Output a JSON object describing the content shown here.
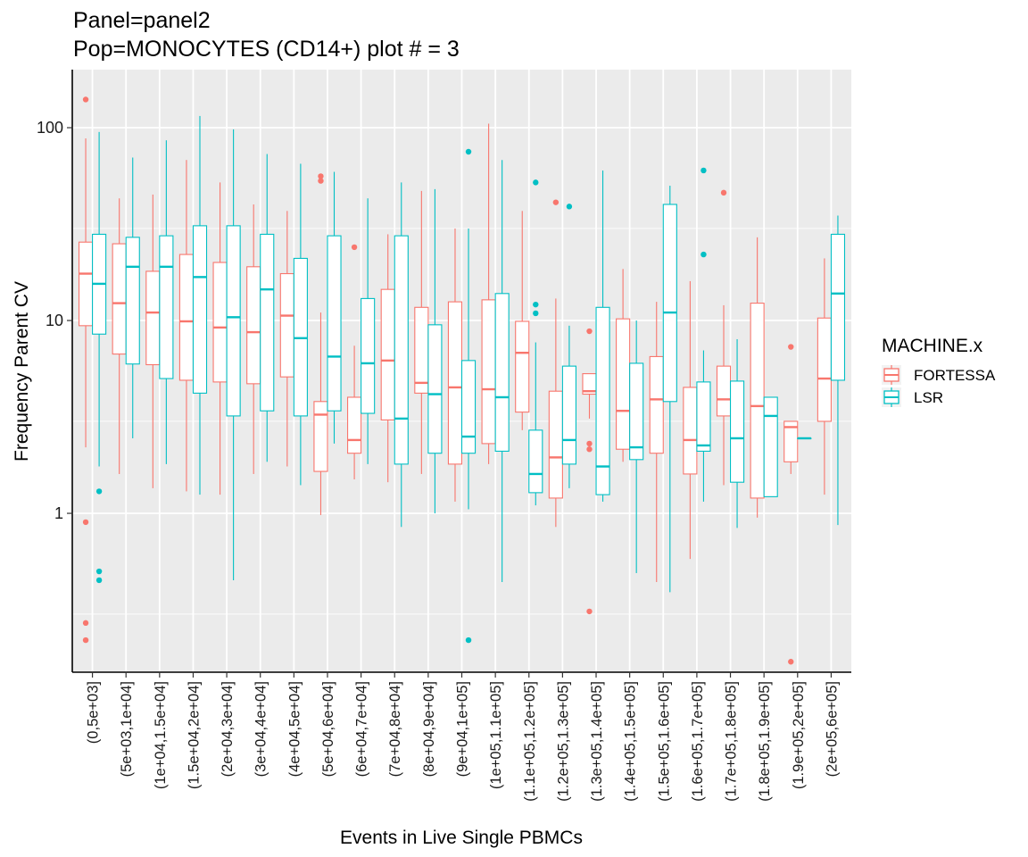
{
  "chart_data": {
    "type": "box",
    "title_lines": [
      "Panel=panel2",
      "Pop=MONOCYTES (CD14+) plot # = 3"
    ],
    "xlabel": "Events in Live Single PBMCs",
    "ylabel": "Frequency Parent CV",
    "y_scale": "log10",
    "ylim": [
      0.15,
      200
    ],
    "y_ticks": [
      1,
      10,
      100
    ],
    "y_tick_labels": [
      "1",
      "10",
      "100"
    ],
    "grid": true,
    "legend": {
      "title": "MACHINE.x",
      "placement": "right",
      "entries": [
        {
          "name": "FORTESSA",
          "color": "#F8766D"
        },
        {
          "name": "LSR",
          "color": "#00BFC4"
        }
      ]
    },
    "categories": [
      "(0,5e+03]",
      "(5e+03,1e+04]",
      "(1e+04,1.5e+04]",
      "(1.5e+04,2e+04]",
      "(2e+04,3e+04]",
      "(3e+04,4e+04]",
      "(4e+04,5e+04]",
      "(5e+04,6e+04]",
      "(6e+04,7e+04]",
      "(7e+04,8e+04]",
      "(8e+04,9e+04]",
      "(9e+04,1e+05]",
      "(1e+05,1.1e+05]",
      "(1.1e+05,1.2e+05]",
      "(1.2e+05,1.3e+05]",
      "(1.3e+05,1.4e+05]",
      "(1.4e+05,1.5e+05]",
      "(1.5e+05,1.6e+05]",
      "(1.6e+05,1.7e+05]",
      "(1.7e+05,1.8e+05]",
      "(1.8e+05,1.9e+05]",
      "(1.9e+05,2e+05]",
      "(2e+05,6e+05]"
    ],
    "series": [
      {
        "name": "FORTESSA",
        "color": "#F8766D",
        "boxes": [
          {
            "min": 2.2,
            "q1": 9.4,
            "median": 17.5,
            "q3": 25.5,
            "max": 88,
            "outliers": [
              140,
              0.9,
              0.27,
              0.22
            ]
          },
          {
            "min": 1.6,
            "q1": 6.7,
            "median": 12.3,
            "q3": 25,
            "max": 43,
            "outliers": []
          },
          {
            "min": 1.35,
            "q1": 5.9,
            "median": 11,
            "q3": 18,
            "max": 45,
            "outliers": []
          },
          {
            "min": 1.3,
            "q1": 4.9,
            "median": 9.9,
            "q3": 22,
            "max": 68,
            "outliers": []
          },
          {
            "min": 1.25,
            "q1": 4.8,
            "median": 9.2,
            "q3": 20,
            "max": 52,
            "outliers": []
          },
          {
            "min": 1.6,
            "q1": 4.7,
            "median": 8.7,
            "q3": 19,
            "max": 40,
            "outliers": []
          },
          {
            "min": 1.75,
            "q1": 5.1,
            "median": 10.6,
            "q3": 17.5,
            "max": 37,
            "outliers": []
          },
          {
            "min": 0.98,
            "q1": 1.65,
            "median": 3.25,
            "q3": 3.8,
            "max": 11,
            "outliers": [
              56,
              53
            ]
          },
          {
            "min": 1.5,
            "q1": 2.05,
            "median": 2.4,
            "q3": 4,
            "max": 7.4,
            "outliers": [
              24
            ]
          },
          {
            "min": 1.45,
            "q1": 3.05,
            "median": 6.2,
            "q3": 14.5,
            "max": 28,
            "outliers": []
          },
          {
            "min": 1.6,
            "q1": 4.2,
            "median": 4.75,
            "q3": 11.7,
            "max": 47,
            "outliers": []
          },
          {
            "min": 1.15,
            "q1": 1.8,
            "median": 4.5,
            "q3": 12.5,
            "max": 30,
            "outliers": []
          },
          {
            "min": 1.8,
            "q1": 2.3,
            "median": 4.4,
            "q3": 12.8,
            "max": 105,
            "outliers": []
          },
          {
            "min": 2.7,
            "q1": 3.35,
            "median": 6.8,
            "q3": 9.9,
            "max": 37,
            "outliers": []
          },
          {
            "min": 0.85,
            "q1": 1.2,
            "median": 1.95,
            "q3": 4.3,
            "max": 13,
            "outliers": [
              41
            ]
          },
          {
            "min": 3.1,
            "q1": 4.15,
            "median": 4.3,
            "q3": 5.3,
            "max": 5.3,
            "outliers": [
              8.8,
              2.3,
              2.15,
              0.31
            ]
          },
          {
            "min": 1.85,
            "q1": 2.15,
            "median": 3.4,
            "q3": 10.2,
            "max": 18.5,
            "outliers": []
          },
          {
            "min": 0.44,
            "q1": 2.05,
            "median": 3.9,
            "q3": 6.5,
            "max": 12.5,
            "outliers": []
          },
          {
            "min": 0.58,
            "q1": 1.6,
            "median": 2.4,
            "q3": 4.5,
            "max": 16,
            "outliers": []
          },
          {
            "min": 1.4,
            "q1": 3.2,
            "median": 3.9,
            "q3": 5.8,
            "max": 12,
            "outliers": [
              46
            ]
          },
          {
            "min": 0.95,
            "q1": 1.2,
            "median": 3.6,
            "q3": 12.3,
            "max": 27,
            "outliers": []
          },
          {
            "min": 1.6,
            "q1": 1.85,
            "median": 2.8,
            "q3": 3,
            "max": 3,
            "outliers": [
              7.3,
              0.17
            ]
          },
          {
            "min": 1.25,
            "q1": 3,
            "median": 5,
            "q3": 10.3,
            "max": 21,
            "outliers": []
          }
        ]
      },
      {
        "name": "LSR",
        "color": "#00BFC4",
        "boxes": [
          {
            "min": 1.75,
            "q1": 8.5,
            "median": 15.5,
            "q3": 28,
            "max": 95,
            "outliers": [
              1.3,
              0.5,
              0.45
            ]
          },
          {
            "min": 2.45,
            "q1": 5.95,
            "median": 19,
            "q3": 27,
            "max": 70,
            "outliers": []
          },
          {
            "min": 1.8,
            "q1": 5,
            "median": 19,
            "q3": 27.5,
            "max": 86,
            "outliers": []
          },
          {
            "min": 1.25,
            "q1": 4.2,
            "median": 16.8,
            "q3": 31,
            "max": 115,
            "outliers": []
          },
          {
            "min": 0.45,
            "q1": 3.2,
            "median": 10.4,
            "q3": 31,
            "max": 98,
            "outliers": []
          },
          {
            "min": 1.85,
            "q1": 3.4,
            "median": 14.5,
            "q3": 28,
            "max": 73,
            "outliers": []
          },
          {
            "min": 1.4,
            "q1": 3.2,
            "median": 8.1,
            "q3": 21,
            "max": 65,
            "outliers": []
          },
          {
            "min": 2.3,
            "q1": 3.4,
            "median": 6.5,
            "q3": 27.5,
            "max": 59,
            "outliers": []
          },
          {
            "min": 1.8,
            "q1": 3.3,
            "median": 6,
            "q3": 13,
            "max": 43,
            "outliers": []
          },
          {
            "min": 0.85,
            "q1": 1.8,
            "median": 3.1,
            "q3": 27.5,
            "max": 52,
            "outliers": []
          },
          {
            "min": 1,
            "q1": 2.05,
            "median": 4.15,
            "q3": 9.5,
            "max": 48,
            "outliers": []
          },
          {
            "min": 1.05,
            "q1": 2.05,
            "median": 2.5,
            "q3": 6.2,
            "max": 30,
            "outliers": [
              75,
              0.22
            ]
          },
          {
            "min": 0.44,
            "q1": 2.1,
            "median": 4,
            "q3": 13.8,
            "max": 68,
            "outliers": []
          },
          {
            "min": 1.1,
            "q1": 1.28,
            "median": 1.6,
            "q3": 2.7,
            "max": 7.7,
            "outliers": [
              52,
              12.1,
              10.9
            ]
          },
          {
            "min": 1.35,
            "q1": 1.8,
            "median": 2.4,
            "q3": 5.8,
            "max": 9.4,
            "outliers": [
              39
            ]
          },
          {
            "min": 1.15,
            "q1": 1.25,
            "median": 1.75,
            "q3": 11.7,
            "max": 60,
            "outliers": []
          },
          {
            "min": 0.49,
            "q1": 1.9,
            "median": 2.2,
            "q3": 6,
            "max": 10,
            "outliers": []
          },
          {
            "min": 0.39,
            "q1": 3.8,
            "median": 11,
            "q3": 40,
            "max": 50,
            "outliers": []
          },
          {
            "min": 1.15,
            "q1": 2.1,
            "median": 2.25,
            "q3": 4.8,
            "max": 7,
            "outliers": [
              60,
              22
            ]
          },
          {
            "min": 0.84,
            "q1": 1.45,
            "median": 2.45,
            "q3": 4.85,
            "max": 8,
            "outliers": []
          },
          {
            "min": 1.22,
            "q1": 1.22,
            "median": 3.2,
            "q3": 4,
            "max": 4,
            "outliers": []
          },
          {
            "min": 2.45,
            "q1": 2.45,
            "median": 2.45,
            "q3": 2.45,
            "max": 2.45,
            "outliers": []
          },
          {
            "min": 0.87,
            "q1": 4.9,
            "median": 13.8,
            "q3": 28,
            "max": 35,
            "outliers": []
          }
        ]
      }
    ]
  }
}
